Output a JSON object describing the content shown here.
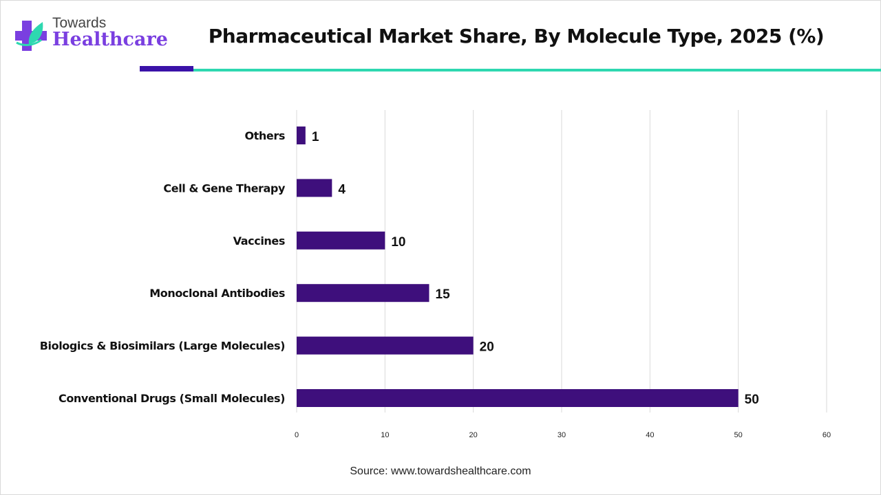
{
  "logo": {
    "line1": "Towards",
    "line2": "Healthcare"
  },
  "title": "Pharmaceutical Market Share, By Molecule Type, 2025 (%)",
  "source": "Source: www.towardshealthcare.com",
  "colors": {
    "bar": "#3e0f7c",
    "accent_purple": "#3a12a8",
    "accent_teal": "#2ed8b0",
    "grid": "#d9d9d9"
  },
  "chart_data": {
    "type": "bar",
    "orientation": "horizontal",
    "categories": [
      "Others",
      "Cell & Gene Therapy",
      "Vaccines",
      "Monoclonal Antibodies",
      "Biologics & Biosimilars (Large Molecules)",
      "Conventional Drugs (Small Molecules)"
    ],
    "values": [
      1,
      4,
      10,
      15,
      20,
      50
    ],
    "xlim": [
      0,
      60
    ],
    "xticks": [
      0,
      10,
      20,
      30,
      40,
      50,
      60
    ],
    "grid": true,
    "data_labels": true
  }
}
